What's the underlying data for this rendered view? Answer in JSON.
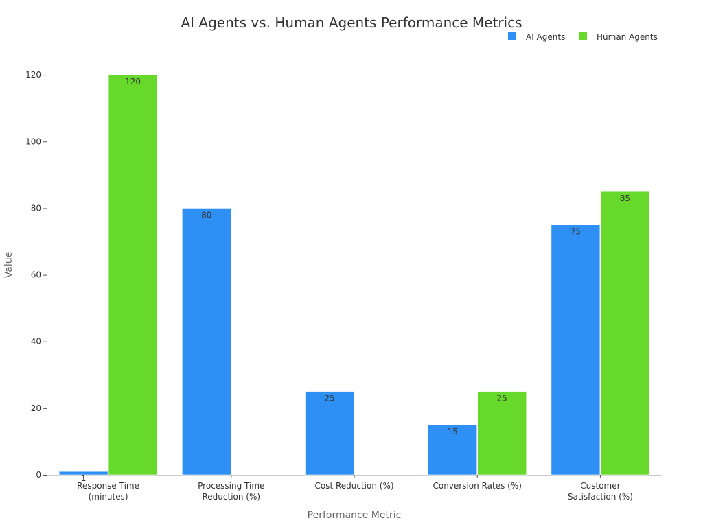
{
  "chart_data": {
    "type": "bar",
    "title": "AI Agents vs. Human Agents Performance Metrics",
    "xlabel": "Performance Metric",
    "ylabel": "Value",
    "categories": [
      [
        "Response Time",
        "(minutes)"
      ],
      [
        "Processing Time",
        "Reduction (%)"
      ],
      [
        "Cost Reduction (%)"
      ],
      [
        "Conversion Rates (%)"
      ],
      [
        "Customer",
        "Satisfaction (%)"
      ]
    ],
    "series": [
      {
        "name": "AI Agents",
        "color": "#2E90F5",
        "values": [
          1,
          80,
          25,
          15,
          75
        ],
        "labels": [
          "1",
          "80",
          "25",
          "15",
          "75"
        ]
      },
      {
        "name": "Human Agents",
        "color": "#66D92A",
        "values": [
          120,
          0,
          0,
          25,
          85
        ],
        "labels": [
          "120",
          "",
          "",
          "25",
          "85"
        ]
      }
    ],
    "ylim": [
      0,
      126
    ],
    "yticks": [
      0,
      20,
      40,
      60,
      80,
      100,
      120
    ],
    "grid": false,
    "legend": "top-right"
  }
}
